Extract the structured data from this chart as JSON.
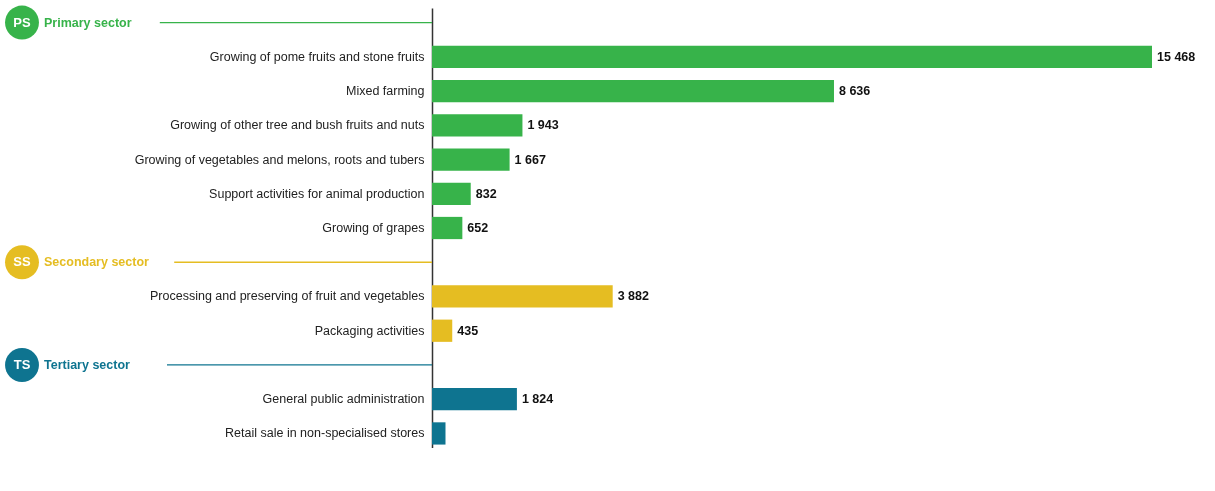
{
  "chart_data": {
    "type": "bar",
    "orientation": "horizontal",
    "categories": [
      null,
      "Growing of pome fruits and stone fruits",
      "Mixed farming",
      "Growing of other tree and bush fruits and nuts",
      "Growing of vegetables and melons, roots and tubers",
      "Support activities for animal production",
      "Growing of grapes",
      null,
      "Processing and preserving of fruit and vegetables",
      "Packaging activities",
      null,
      "General public administration",
      "Retail sale in non-specialised stores"
    ],
    "values": [
      null,
      15468,
      8636,
      1943,
      1667,
      832,
      652,
      null,
      3882,
      435,
      null,
      1824,
      290
    ],
    "value_labels": [
      null,
      "15 468",
      "8 636",
      "1 943",
      "1 667",
      "832",
      "652",
      null,
      "3 882",
      "435",
      null,
      "1 824",
      null
    ],
    "colors": [
      "#37b34a",
      "#37b34a",
      "#37b34a",
      "#37b34a",
      "#37b34a",
      "#37b34a",
      "#37b34a",
      "#e5bd22",
      "#e5bd22",
      "#e5bd22",
      "#0e7490",
      "#0e7490",
      "#0e7490"
    ],
    "annotations": [
      "PS",
      "Primary sector",
      "SS",
      "Secondary sector",
      "TS",
      "Tertiary sector"
    ],
    "xlim": [
      0,
      15468
    ],
    "grid": false
  }
}
